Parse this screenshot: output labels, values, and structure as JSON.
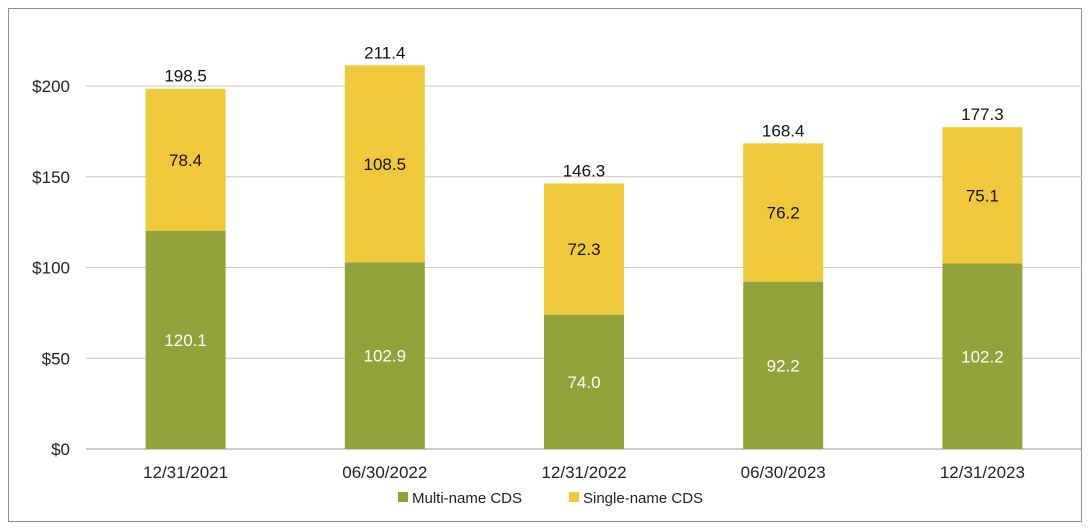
{
  "chart_data": {
    "type": "bar",
    "stacked": true,
    "categories": [
      "12/31/2021",
      "06/30/2022",
      "12/31/2022",
      "06/30/2023",
      "12/31/2023"
    ],
    "series": [
      {
        "name": "Multi-name CDS",
        "values": [
          120.1,
          102.9,
          74.0,
          92.2,
          102.2
        ],
        "labels": [
          "120.1",
          "102.9",
          "74.0",
          "92.2",
          "102.2"
        ],
        "color": "#93a13b",
        "label_color": "#ffffff"
      },
      {
        "name": "Single-name CDS",
        "values": [
          78.4,
          108.5,
          72.3,
          76.2,
          75.1
        ],
        "labels": [
          "78.4",
          "108.5",
          "72.3",
          "76.2",
          "75.1"
        ],
        "color": "#f0c93a",
        "label_color": "#111111"
      }
    ],
    "totals": [
      "198.5",
      "211.4",
      "146.3",
      "168.4",
      "177.3"
    ],
    "ylim": [
      0,
      200
    ],
    "yticks": [
      0,
      50,
      100,
      150,
      200
    ],
    "ytick_labels": [
      "$0",
      "$50",
      "$100",
      "$150",
      "$200"
    ],
    "grid": true,
    "legend": "bottom-center",
    "title": "",
    "xlabel": "",
    "ylabel": ""
  }
}
